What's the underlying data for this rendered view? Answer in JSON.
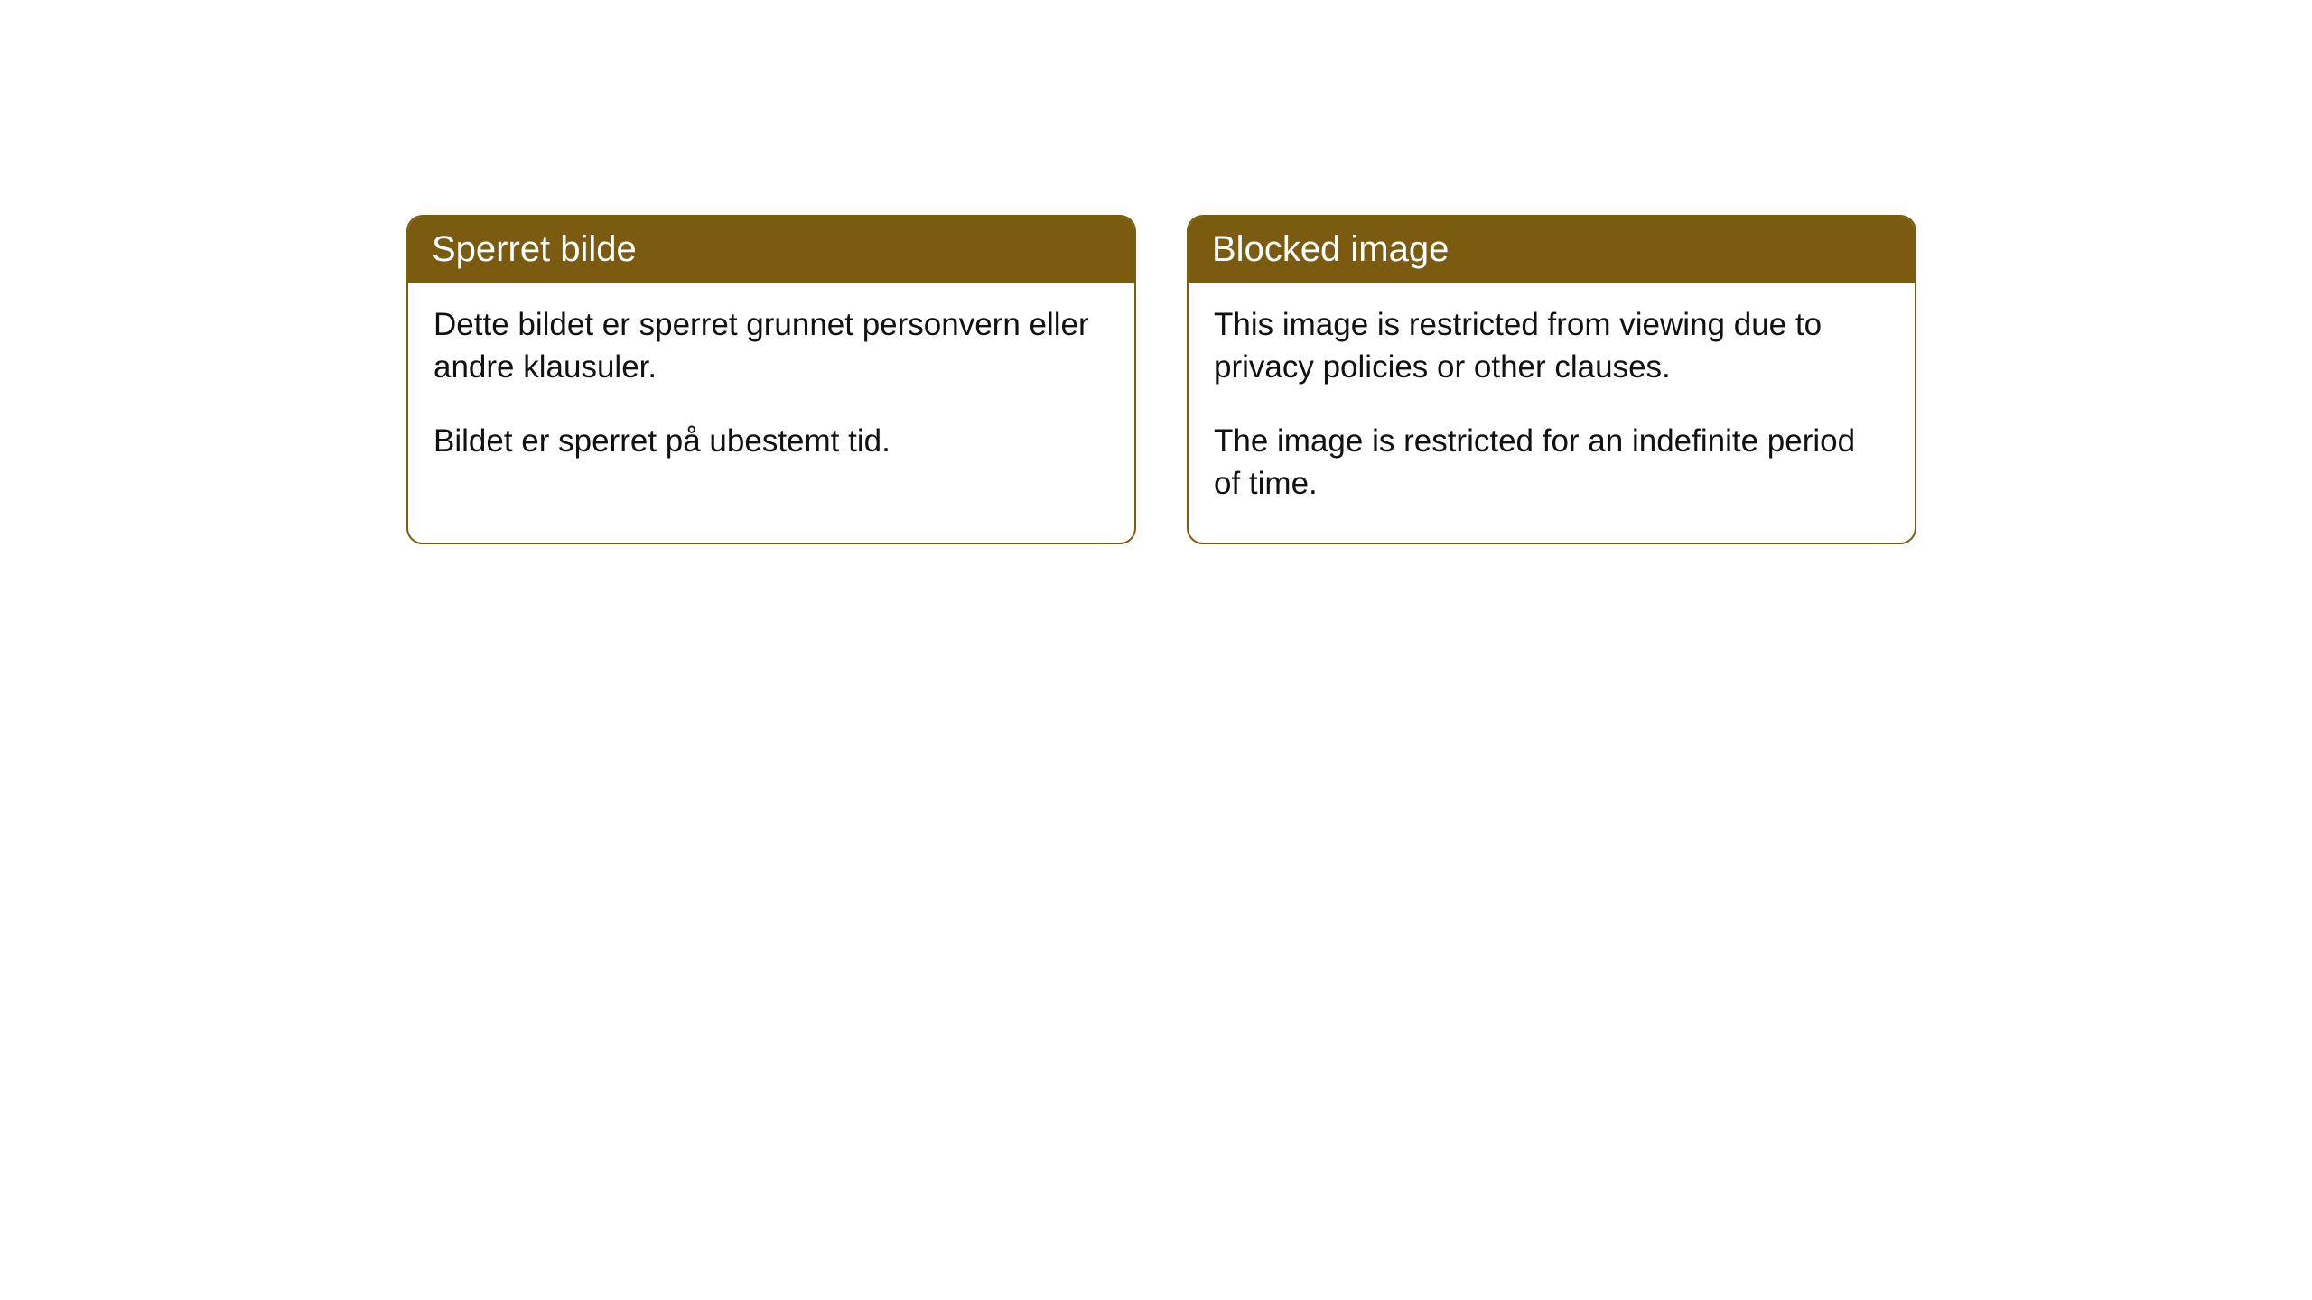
{
  "cards": [
    {
      "title": "Sperret bilde",
      "paragraph1": "Dette bildet er sperret grunnet personvern eller andre klausuler.",
      "paragraph2": "Bildet er sperret på ubestemt tid."
    },
    {
      "title": "Blocked image",
      "paragraph1": "This image is restricted from viewing due to privacy policies or other clauses.",
      "paragraph2": "The image is restricted for an indefinite period of time."
    }
  ],
  "styles": {
    "header_background": "#7a5b10",
    "header_text_color": "#ffffff",
    "border_color": "#7a5b10",
    "body_text_color": "#111111",
    "page_background": "#ffffff",
    "border_radius": 18,
    "title_fontsize": 40,
    "body_fontsize": 35
  }
}
